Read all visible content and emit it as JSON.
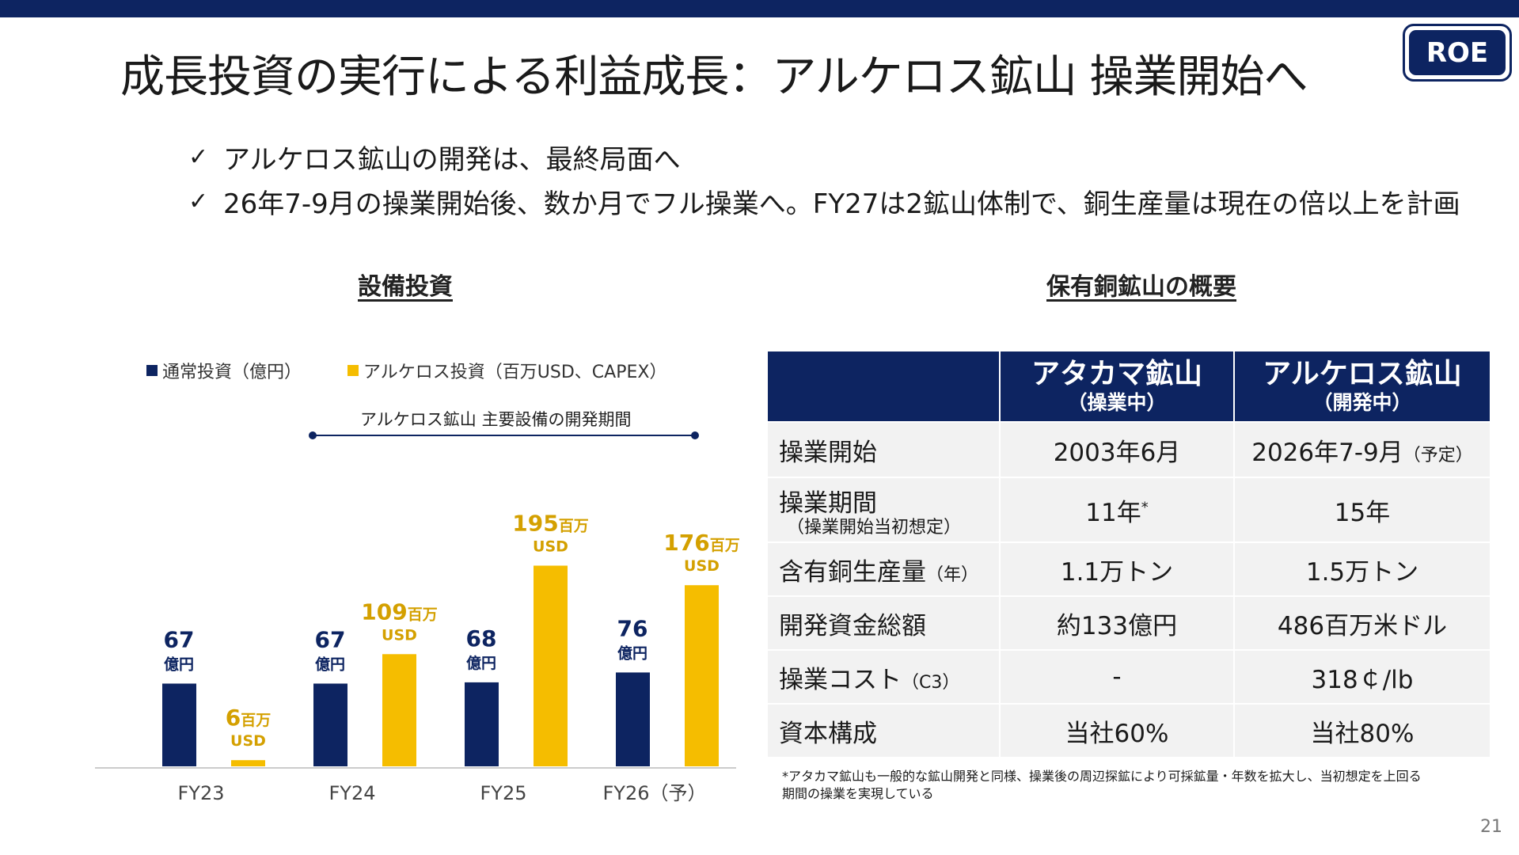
{
  "slide": {
    "title": "成長投資の実行による利益成長：アルケロス鉱山 操業開始へ",
    "badge": "ROE",
    "bullets": [
      "アルケロス鉱山の開発は、最終局面へ",
      "26年7-9月の操業開始後、数か月でフル操業へ。FY27は2鉱山体制で、銅生産量は現在の倍以上を計画"
    ],
    "check_glyph": "✓",
    "page_number": "21"
  },
  "chart_section_title": "設備投資",
  "table_section_title": "保有銅鉱山の概要",
  "chart_data": {
    "type": "bar",
    "categories": [
      "FY23",
      "FY24",
      "FY25",
      "FY26（予）"
    ],
    "series": [
      {
        "name": "通常投資（億円）",
        "values": [
          67,
          67,
          68,
          76
        ],
        "color": "#0d2461",
        "label_unit": "億円"
      },
      {
        "name": "アルケロス投資（百万USD、CAPEX）",
        "values": [
          6,
          109,
          195,
          176
        ],
        "color": "#f5bd00",
        "label_unit": "百万",
        "label_unit2": "USD"
      }
    ],
    "annotation": "アルケロス鉱山 主要設備の開発期間",
    "annotation_span": [
      "FY24",
      "FY26（予）"
    ],
    "ylim": [
      0,
      210
    ],
    "grid": false
  },
  "table": {
    "headers": [
      {
        "name": "アタカマ鉱山",
        "sub": "（操業中）"
      },
      {
        "name": "アルケロス鉱山",
        "sub": "（開発中）"
      }
    ],
    "rows": [
      {
        "label": "操業開始",
        "label_small": "",
        "label_sub": "",
        "a": "2003年6月",
        "a_small": "",
        "b": "2026年7-9月",
        "b_small": "（予定）"
      },
      {
        "label": "操業期間",
        "label_small": "",
        "label_sub": "（操業開始当初想定）",
        "a": "11年",
        "a_sup": "*",
        "b": "15年",
        "b_small": ""
      },
      {
        "label": "含有銅生産量",
        "label_small": "（年）",
        "label_sub": "",
        "a": "1.1万トン",
        "b": "1.5万トン",
        "b_small": ""
      },
      {
        "label": "開発資金総額",
        "label_small": "",
        "label_sub": "",
        "a": "約133億円",
        "b": "486百万米ドル",
        "b_small": ""
      },
      {
        "label": "操業コスト",
        "label_small": "（C3）",
        "label_sub": "",
        "a": "-",
        "b": "318￠/lb",
        "b_small": ""
      },
      {
        "label": "資本構成",
        "label_small": "",
        "label_sub": "",
        "a": "当社60%",
        "b": "当社80%",
        "b_small": ""
      }
    ]
  },
  "footnote": [
    "*アタカマ鉱山も一般的な鉱山開発と同様、操業後の周辺探鉱により可採鉱量・年数を拡大し、当初想定を上回る",
    "期間の操業を実現している"
  ],
  "colors": {
    "navy": "#0d2461",
    "gold": "#f5bd00",
    "gold_text": "#d4a000",
    "axis": "#cccccc"
  }
}
